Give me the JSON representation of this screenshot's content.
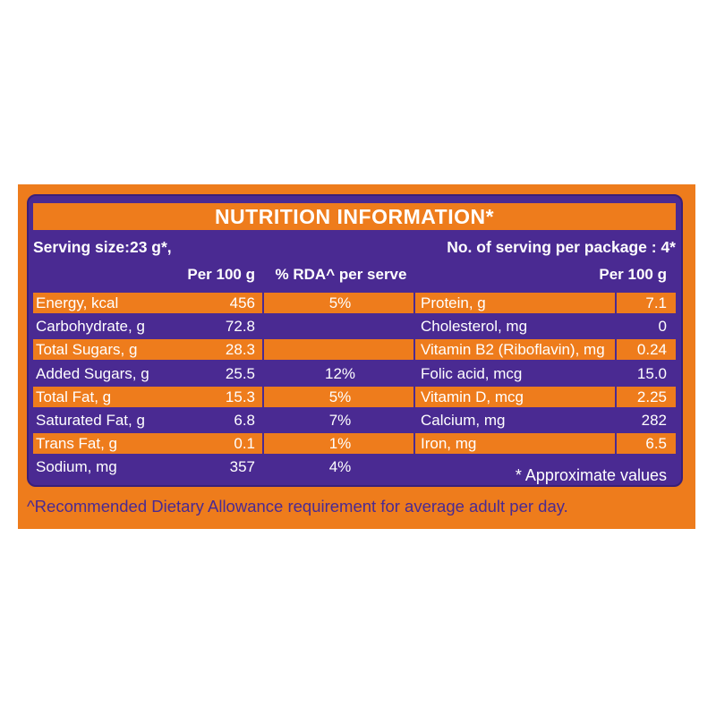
{
  "title": "NUTRITION INFORMATION*",
  "serving_size": "Serving size:23 g*,",
  "servings_per_package": "No. of serving per package : 4*",
  "headers": {
    "per100_left": "Per 100 g",
    "rda": "% RDA^ per serve",
    "per100_right": "Per 100 g"
  },
  "left_rows": [
    {
      "label": "Energy, kcal",
      "per100": "456",
      "rda": "5%"
    },
    {
      "label": "Carbohydrate, g",
      "per100": "72.8",
      "rda": ""
    },
    {
      "label": "Total Sugars, g",
      "per100": "28.3",
      "rda": ""
    },
    {
      "label": "Added Sugars, g",
      "per100": "25.5",
      "rda": "12%"
    },
    {
      "label": "Total Fat, g",
      "per100": "15.3",
      "rda": "5%"
    },
    {
      "label": "Saturated Fat, g",
      "per100": "6.8",
      "rda": "7%"
    },
    {
      "label": "Trans Fat, g",
      "per100": "0.1",
      "rda": "1%"
    },
    {
      "label": "Sodium, mg",
      "per100": "357",
      "rda": "4%"
    }
  ],
  "right_rows": [
    {
      "label": "Protein, g",
      "per100": "7.1"
    },
    {
      "label": "Cholesterol, mg",
      "per100": "0"
    },
    {
      "label": "Vitamin B2 (Riboflavin), mg",
      "per100": "0.24"
    },
    {
      "label": "Folic acid, mcg",
      "per100": "15.0"
    },
    {
      "label": "Vitamin D, mcg",
      "per100": "2.25"
    },
    {
      "label": "Calcium, mg",
      "per100": "282"
    },
    {
      "label": "Iron, mg",
      "per100": "6.5"
    }
  ],
  "approx_note": "* Approximate values",
  "footnote": "^Recommended Dietary Allowance requirement for average adult per day.",
  "colors": {
    "orange": "#ee7c1c",
    "purple": "#4a2a92",
    "white": "#ffffff"
  }
}
